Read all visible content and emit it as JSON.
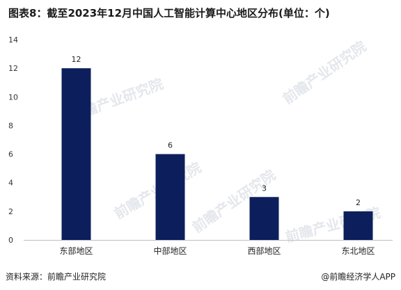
{
  "title": "图表8：截至2023年12月中国人工智能计算中心地区分布(单位：个)",
  "source": "资料来源：前瞻产业研究院",
  "brand": "@前瞻经济学人APP",
  "watermark": "前瞻产业研究院",
  "colors": {
    "bar": "#0c1f5c",
    "axis": "#bfbfbf"
  },
  "chart_data": {
    "type": "bar",
    "title": "图表8：截至2023年12月中国人工智能计算中心地区分布(单位：个)",
    "categories": [
      "东部地区",
      "中部地区",
      "西部地区",
      "东北地区"
    ],
    "values": [
      12,
      6,
      3,
      2
    ],
    "ylim": [
      0,
      14
    ],
    "yticks": [
      0,
      2,
      4,
      6,
      8,
      10,
      12,
      14
    ],
    "xlabel": "",
    "ylabel": "",
    "grid": false,
    "legend": "none"
  }
}
